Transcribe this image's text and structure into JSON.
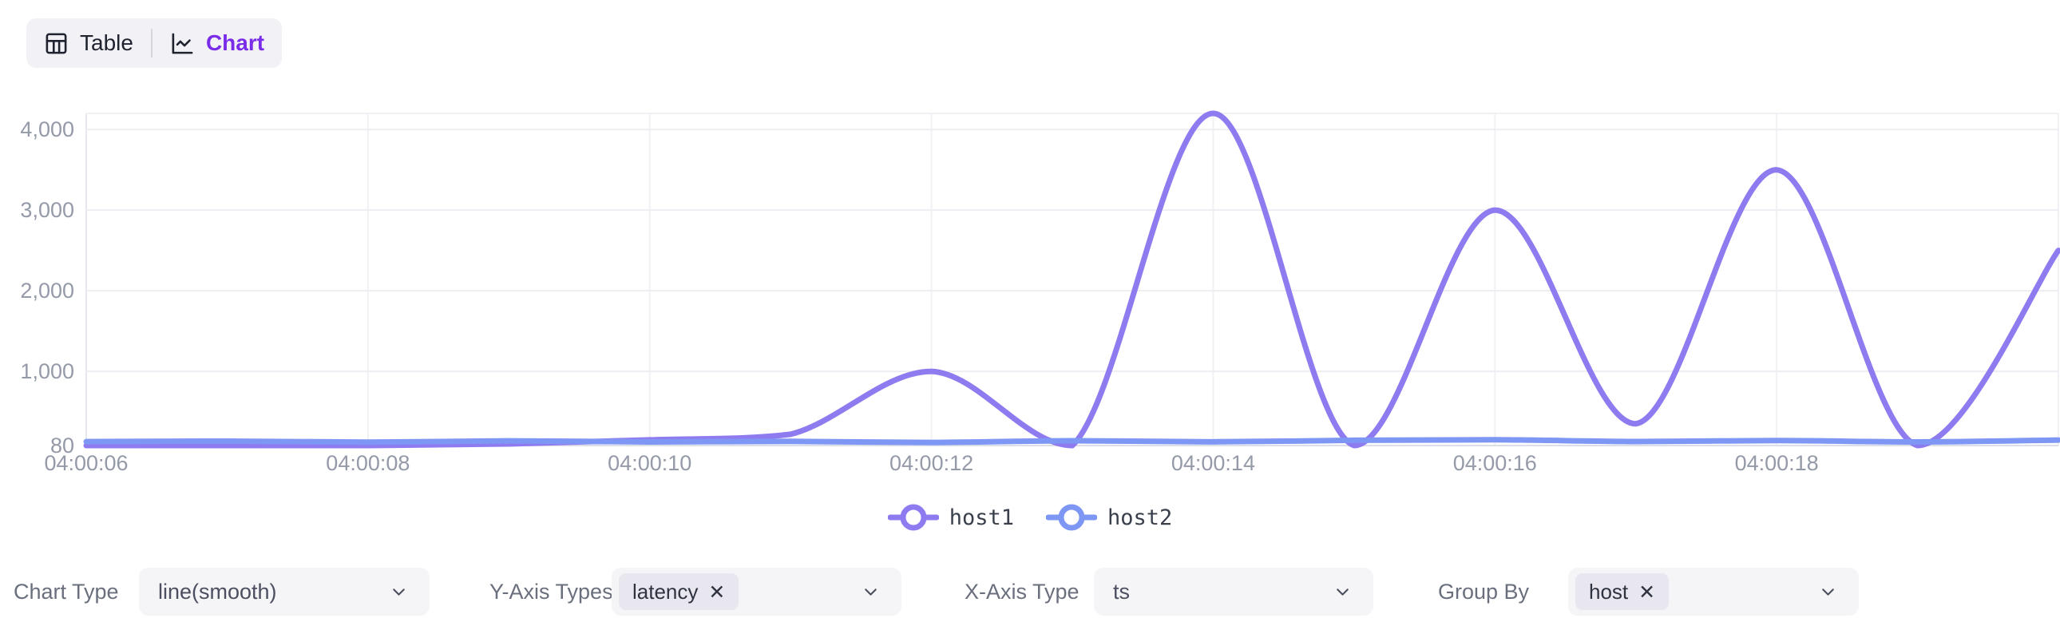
{
  "view_toggle": {
    "table_label": "Table",
    "chart_label": "Chart",
    "active": "Chart"
  },
  "chart_data": {
    "type": "line",
    "smooth": true,
    "grid": true,
    "legend_position": "bottom",
    "title": "",
    "xlabel": "",
    "ylabel": "",
    "x": [
      "04:00:06",
      "04:00:07",
      "04:00:08",
      "04:00:09",
      "04:00:10",
      "04:00:11",
      "04:00:12",
      "04:00:13",
      "04:00:14",
      "04:00:15",
      "04:00:16",
      "04:00:17",
      "04:00:18",
      "04:00:19",
      "04:00:20"
    ],
    "x_tick_labels": [
      "04:00:06",
      "04:00:08",
      "04:00:10",
      "04:00:12",
      "04:00:14",
      "04:00:16",
      "04:00:18"
    ],
    "y_ticks": [
      80,
      1000,
      2000,
      3000,
      4000
    ],
    "y_tick_labels": [
      "80",
      "1,000",
      "2,000",
      "3,000",
      "4,000"
    ],
    "ylim": [
      80,
      4200
    ],
    "series": [
      {
        "name": "host1",
        "color": "#8f7bf0",
        "values": [
          80,
          80,
          80,
          100,
          150,
          220,
          1000,
          80,
          4200,
          80,
          3000,
          350,
          3500,
          80,
          2500
        ]
      },
      {
        "name": "host2",
        "color": "#7e97f4",
        "values": [
          128,
          135,
          122,
          138,
          125,
          132,
          118,
          140,
          126,
          145,
          152,
          130,
          142,
          125,
          148
        ]
      }
    ]
  },
  "controls": [
    {
      "label": "Chart Type",
      "value": "line(smooth)"
    },
    {
      "label": "Y-Axis Types",
      "tags": [
        "latency"
      ]
    },
    {
      "label": "X-Axis Type",
      "value": "ts"
    },
    {
      "label": "Group By",
      "tags": [
        "host"
      ]
    }
  ],
  "icons": {
    "remove_tag": "✕"
  },
  "colors": {
    "accent": "#7a2de8",
    "series_host1": "#8f7bf0",
    "series_host2": "#7e97f4",
    "axis_label": "#949aa8",
    "grid_line": "#ededf2",
    "axis_line": "#dcdfe7",
    "toggle_bg": "#f2f1f5",
    "select_bg": "#f5f4f7",
    "tag_bg": "#e8e7ef"
  }
}
